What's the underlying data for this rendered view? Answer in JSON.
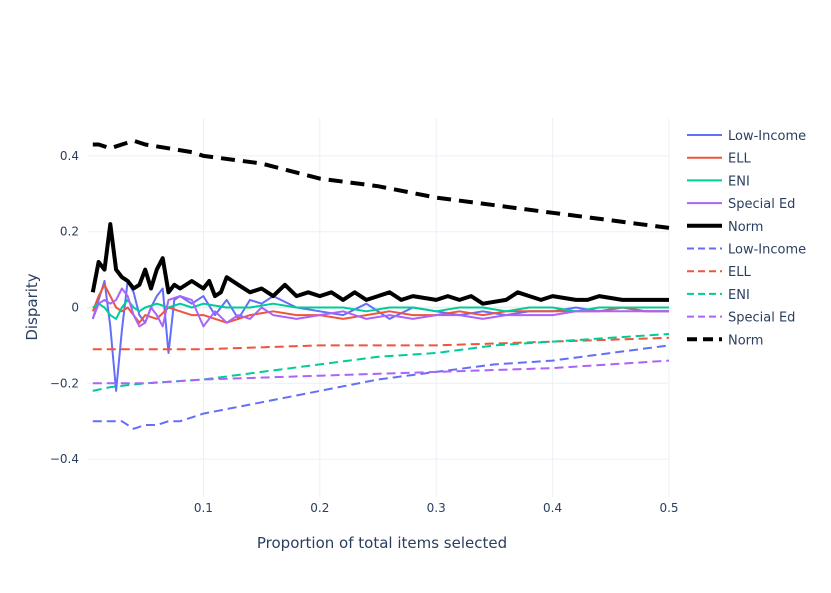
{
  "chart_data": {
    "type": "line",
    "title": "",
    "xlabel": "Proportion of total items selected",
    "ylabel": "Disparity",
    "xlim": [
      0.0,
      0.5
    ],
    "ylim": [
      -0.5,
      0.5
    ],
    "x_ticks": [
      0.1,
      0.2,
      0.3,
      0.4,
      0.5
    ],
    "x_tick_labels": [
      "0.1",
      "0.2",
      "0.3",
      "0.4",
      "0.5"
    ],
    "y_ticks": [
      -0.4,
      -0.2,
      0,
      0.2,
      0.4
    ],
    "y_tick_labels": [
      "−0.4",
      "−0.2",
      "0",
      "0.2",
      "0.4"
    ],
    "grid": true,
    "legend_position": "right",
    "series": [
      {
        "name": "Low-Income",
        "color": "#636efa",
        "dash": "solid",
        "width": 2,
        "x": [
          0.005,
          0.01,
          0.015,
          0.02,
          0.025,
          0.03,
          0.035,
          0.04,
          0.045,
          0.05,
          0.055,
          0.06,
          0.065,
          0.07,
          0.075,
          0.08,
          0.09,
          0.1,
          0.11,
          0.12,
          0.13,
          0.14,
          0.15,
          0.16,
          0.18,
          0.2,
          0.22,
          0.24,
          0.26,
          0.28,
          0.3,
          0.32,
          0.34,
          0.36,
          0.38,
          0.4,
          0.42,
          0.44,
          0.46,
          0.48,
          0.5
        ],
        "y": [
          -0.03,
          0.02,
          0.07,
          -0.05,
          -0.22,
          -0.06,
          0.07,
          0.04,
          -0.02,
          -0.04,
          0.0,
          0.03,
          0.05,
          -0.12,
          0.02,
          0.03,
          0.01,
          0.03,
          -0.02,
          0.02,
          -0.03,
          0.02,
          0.01,
          0.03,
          0.0,
          -0.01,
          -0.02,
          0.01,
          -0.03,
          0.0,
          -0.01,
          -0.02,
          -0.01,
          -0.02,
          -0.01,
          -0.01,
          0.0,
          -0.01,
          0.0,
          -0.01,
          -0.01
        ]
      },
      {
        "name": "ELL",
        "color": "#ef553b",
        "dash": "solid",
        "width": 2,
        "x": [
          0.005,
          0.01,
          0.015,
          0.02,
          0.025,
          0.03,
          0.035,
          0.04,
          0.045,
          0.05,
          0.06,
          0.07,
          0.08,
          0.09,
          0.1,
          0.12,
          0.14,
          0.16,
          0.18,
          0.2,
          0.22,
          0.24,
          0.26,
          0.28,
          0.3,
          0.32,
          0.34,
          0.36,
          0.38,
          0.4,
          0.42,
          0.44,
          0.46,
          0.48,
          0.5
        ],
        "y": [
          -0.01,
          0.03,
          0.06,
          0.03,
          0.0,
          -0.01,
          0.0,
          -0.02,
          -0.04,
          -0.02,
          -0.03,
          0.0,
          -0.01,
          -0.02,
          -0.02,
          -0.04,
          -0.02,
          -0.01,
          -0.02,
          -0.02,
          -0.03,
          -0.02,
          -0.01,
          -0.02,
          -0.02,
          -0.01,
          -0.02,
          -0.01,
          -0.01,
          -0.01,
          -0.01,
          -0.01,
          0.0,
          -0.01,
          -0.01
        ]
      },
      {
        "name": "ENI",
        "color": "#00cc96",
        "dash": "solid",
        "width": 2,
        "x": [
          0.005,
          0.01,
          0.015,
          0.02,
          0.025,
          0.03,
          0.035,
          0.04,
          0.045,
          0.05,
          0.06,
          0.07,
          0.08,
          0.09,
          0.1,
          0.12,
          0.14,
          0.16,
          0.18,
          0.2,
          0.22,
          0.24,
          0.26,
          0.28,
          0.3,
          0.32,
          0.34,
          0.36,
          0.38,
          0.4,
          0.42,
          0.44,
          0.46,
          0.48,
          0.5
        ],
        "y": [
          0.0,
          0.01,
          0.0,
          -0.02,
          -0.03,
          0.0,
          0.02,
          0.0,
          -0.01,
          0.0,
          0.01,
          0.0,
          0.01,
          0.0,
          0.01,
          0.0,
          0.0,
          0.01,
          0.0,
          0.0,
          0.0,
          -0.01,
          0.0,
          0.0,
          -0.01,
          0.0,
          0.0,
          -0.01,
          0.0,
          0.0,
          -0.01,
          0.0,
          0.0,
          0.0,
          0.0
        ]
      },
      {
        "name": "Special Ed",
        "color": "#ab63fa",
        "dash": "solid",
        "width": 2,
        "x": [
          0.005,
          0.01,
          0.015,
          0.02,
          0.025,
          0.03,
          0.035,
          0.04,
          0.045,
          0.05,
          0.055,
          0.06,
          0.065,
          0.07,
          0.08,
          0.09,
          0.1,
          0.11,
          0.12,
          0.13,
          0.14,
          0.15,
          0.16,
          0.18,
          0.2,
          0.22,
          0.24,
          0.26,
          0.28,
          0.3,
          0.32,
          0.34,
          0.36,
          0.38,
          0.4,
          0.42,
          0.44,
          0.46,
          0.48,
          0.5
        ],
        "y": [
          -0.03,
          0.01,
          0.02,
          0.01,
          0.02,
          0.05,
          0.03,
          -0.02,
          -0.05,
          -0.04,
          0.0,
          -0.02,
          -0.05,
          0.02,
          0.03,
          0.02,
          -0.05,
          -0.01,
          -0.04,
          -0.02,
          -0.03,
          0.0,
          -0.02,
          -0.03,
          -0.02,
          -0.01,
          -0.03,
          -0.02,
          -0.03,
          -0.02,
          -0.02,
          -0.03,
          -0.02,
          -0.02,
          -0.02,
          -0.01,
          -0.01,
          -0.01,
          -0.01,
          -0.01
        ]
      },
      {
        "name": "Norm",
        "color": "#000000",
        "dash": "solid",
        "width": 4,
        "x": [
          0.005,
          0.01,
          0.015,
          0.02,
          0.025,
          0.03,
          0.035,
          0.04,
          0.045,
          0.05,
          0.055,
          0.06,
          0.065,
          0.07,
          0.075,
          0.08,
          0.09,
          0.1,
          0.105,
          0.11,
          0.115,
          0.12,
          0.13,
          0.14,
          0.15,
          0.16,
          0.17,
          0.18,
          0.19,
          0.2,
          0.21,
          0.22,
          0.23,
          0.24,
          0.25,
          0.26,
          0.27,
          0.28,
          0.3,
          0.31,
          0.32,
          0.33,
          0.34,
          0.36,
          0.37,
          0.38,
          0.39,
          0.4,
          0.42,
          0.43,
          0.44,
          0.46,
          0.48,
          0.5
        ],
        "y": [
          0.04,
          0.12,
          0.1,
          0.22,
          0.1,
          0.08,
          0.07,
          0.05,
          0.06,
          0.1,
          0.05,
          0.1,
          0.13,
          0.04,
          0.06,
          0.05,
          0.07,
          0.05,
          0.07,
          0.03,
          0.04,
          0.08,
          0.06,
          0.04,
          0.05,
          0.03,
          0.06,
          0.03,
          0.04,
          0.03,
          0.04,
          0.02,
          0.04,
          0.02,
          0.03,
          0.04,
          0.02,
          0.03,
          0.02,
          0.03,
          0.02,
          0.03,
          0.01,
          0.02,
          0.04,
          0.03,
          0.02,
          0.03,
          0.02,
          0.02,
          0.03,
          0.02,
          0.02,
          0.02
        ]
      },
      {
        "name": "Low-Income",
        "color": "#636efa",
        "dash": "dashed",
        "width": 2,
        "x": [
          0.005,
          0.01,
          0.015,
          0.02,
          0.03,
          0.04,
          0.05,
          0.06,
          0.07,
          0.08,
          0.09,
          0.1,
          0.15,
          0.2,
          0.25,
          0.3,
          0.35,
          0.4,
          0.45,
          0.5
        ],
        "y": [
          -0.3,
          -0.3,
          -0.3,
          -0.3,
          -0.3,
          -0.32,
          -0.31,
          -0.31,
          -0.3,
          -0.3,
          -0.29,
          -0.28,
          -0.25,
          -0.22,
          -0.19,
          -0.17,
          -0.15,
          -0.14,
          -0.12,
          -0.1
        ]
      },
      {
        "name": "ELL",
        "color": "#ef553b",
        "dash": "dashed",
        "width": 2,
        "x": [
          0.005,
          0.1,
          0.2,
          0.3,
          0.4,
          0.5
        ],
        "y": [
          -0.11,
          -0.11,
          -0.1,
          -0.1,
          -0.09,
          -0.08
        ]
      },
      {
        "name": "ENI",
        "color": "#00cc96",
        "dash": "dashed",
        "width": 2,
        "x": [
          0.005,
          0.02,
          0.05,
          0.1,
          0.15,
          0.2,
          0.25,
          0.3,
          0.35,
          0.4,
          0.45,
          0.5
        ],
        "y": [
          -0.22,
          -0.21,
          -0.2,
          -0.19,
          -0.17,
          -0.15,
          -0.13,
          -0.12,
          -0.1,
          -0.09,
          -0.08,
          -0.07
        ]
      },
      {
        "name": "Special Ed",
        "color": "#ab63fa",
        "dash": "dashed",
        "width": 2,
        "x": [
          0.005,
          0.05,
          0.1,
          0.2,
          0.3,
          0.4,
          0.5
        ],
        "y": [
          -0.2,
          -0.2,
          -0.19,
          -0.18,
          -0.17,
          -0.16,
          -0.14
        ]
      },
      {
        "name": "Norm",
        "color": "#000000",
        "dash": "dashed",
        "width": 4,
        "x": [
          0.005,
          0.01,
          0.02,
          0.03,
          0.04,
          0.05,
          0.07,
          0.09,
          0.1,
          0.15,
          0.2,
          0.25,
          0.3,
          0.35,
          0.4,
          0.45,
          0.5
        ],
        "y": [
          0.43,
          0.43,
          0.42,
          0.43,
          0.44,
          0.43,
          0.42,
          0.41,
          0.4,
          0.38,
          0.34,
          0.32,
          0.29,
          0.27,
          0.25,
          0.23,
          0.21
        ]
      }
    ]
  }
}
